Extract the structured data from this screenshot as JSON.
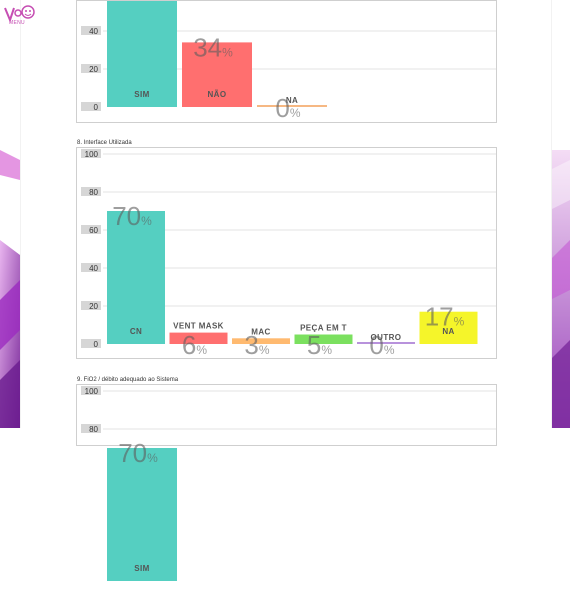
{
  "brand": {
    "menu_label": "MENU"
  },
  "sections": [
    {
      "title": ""
    },
    {
      "title": "8. Interface Utilizada"
    },
    {
      "title": "9. FiO2 / débito adequado ao Sistema"
    }
  ],
  "chart_data": [
    {
      "type": "bar",
      "title": "",
      "ylim": [
        0,
        100
      ],
      "yticks": [
        0,
        20,
        40
      ],
      "categories": [
        "SIM",
        "NÃO",
        "NA"
      ],
      "values": [
        66,
        34,
        0
      ],
      "value_labels": [
        "",
        "34",
        "0"
      ],
      "unit": "%",
      "colors": [
        "#55cfc1",
        "#ff6f6f",
        "#f3a15a"
      ],
      "grid": true
    },
    {
      "type": "bar",
      "title": "8. Interface Utilizada",
      "ylim": [
        0,
        100
      ],
      "yticks": [
        0,
        20,
        40,
        60,
        80,
        100
      ],
      "categories": [
        "CN",
        "VENT MASK",
        "MAC",
        "PEÇA EM T",
        "OUTRO",
        "NA"
      ],
      "values": [
        70,
        6,
        3,
        5,
        0,
        17
      ],
      "value_labels": [
        "70",
        "6",
        "3",
        "5",
        "0",
        "17"
      ],
      "unit": "%",
      "colors": [
        "#55cfc1",
        "#ff6f6f",
        "#ffba70",
        "#7be05f",
        "#a06fd0",
        "#f5f52a"
      ],
      "grid": true
    },
    {
      "type": "bar",
      "title": "9. FiO2 / débito adequado ao Sistema",
      "ylim": [
        0,
        100
      ],
      "yticks": [
        80,
        100
      ],
      "categories": [
        "SIM"
      ],
      "values": [
        70
      ],
      "value_labels": [
        "70"
      ],
      "unit": "%",
      "colors": [
        "#55cfc1"
      ],
      "grid": true
    }
  ]
}
